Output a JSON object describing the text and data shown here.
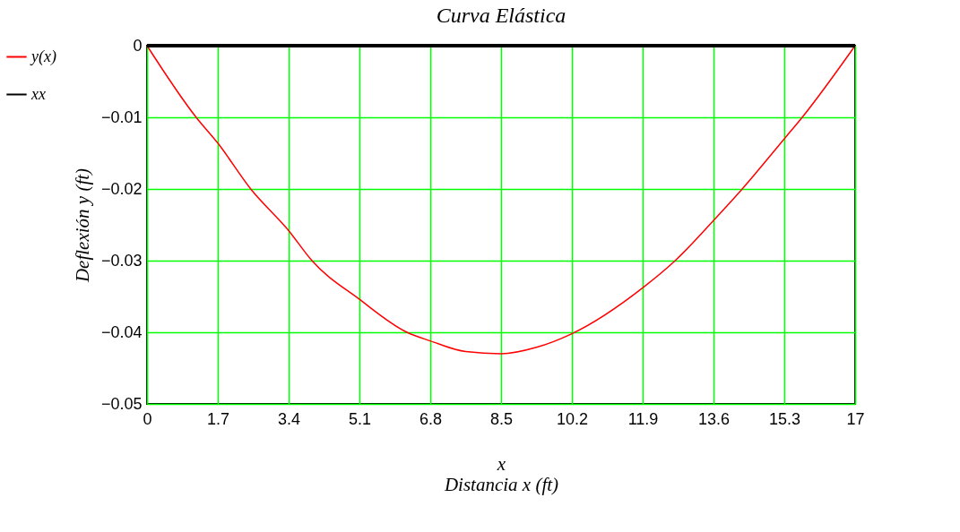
{
  "chart_data": {
    "type": "line",
    "title": "Curva Elástica",
    "xlabel": "x\nDistancia x (ft)",
    "ylabel": "Deflexión y (ft)",
    "x": [
      0,
      1.18,
      1.7,
      2.49,
      3.4,
      3.96,
      5.1,
      6.24,
      6.8,
      7.65,
      8.5,
      9.35,
      10.2,
      11.9,
      12.68,
      13.6,
      14.29,
      15.3,
      15.73,
      17
    ],
    "series": [
      {
        "name": "y(x)",
        "color": "#ff0000",
        "values": [
          0,
          -0.01,
          -0.0136,
          -0.02,
          -0.0258,
          -0.03,
          -0.0354,
          -0.04,
          -0.0412,
          -0.0427,
          -0.043,
          -0.0421,
          -0.0402,
          -0.0338,
          -0.03,
          -0.0244,
          -0.02,
          -0.013,
          -0.01,
          0
        ]
      },
      {
        "name": "xx",
        "color": "#000000",
        "x": [
          0,
          17
        ],
        "values": [
          0,
          0
        ]
      }
    ],
    "xlim": [
      0,
      17
    ],
    "xticks": [
      0,
      1.7,
      3.4,
      5.1,
      6.8,
      8.5,
      10.2,
      11.9,
      13.6,
      15.3,
      17
    ],
    "ylim": [
      -0.05,
      0
    ],
    "yticks": [
      -0.05,
      -0.04,
      -0.03,
      -0.02,
      -0.01,
      0
    ],
    "grid": true,
    "legend": "left",
    "line_style": "solid",
    "marker": "none"
  }
}
